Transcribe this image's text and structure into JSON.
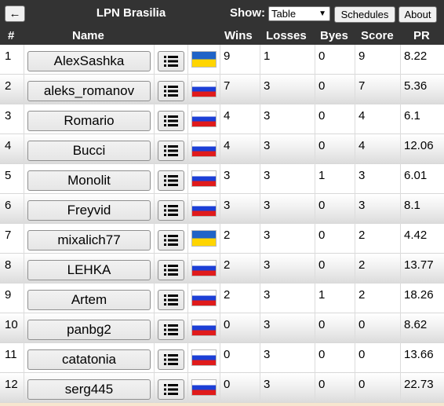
{
  "header": {
    "back_label": "←",
    "title": "LPN Brasilia",
    "show_label": "Show:",
    "show_value": "Table",
    "schedules_label": "Schedules",
    "about_label": "About"
  },
  "columns": {
    "num": "#",
    "name": "Name",
    "wins": "Wins",
    "losses": "Losses",
    "byes": "Byes",
    "score": "Score",
    "pr": "PR"
  },
  "rows": [
    {
      "num": "1",
      "name": "AlexSashka",
      "flag": "ua",
      "wins": "9",
      "losses": "1",
      "byes": "0",
      "score": "9",
      "pr": "8.22"
    },
    {
      "num": "2",
      "name": "aleks_romanov",
      "flag": "ru",
      "wins": "7",
      "losses": "3",
      "byes": "0",
      "score": "7",
      "pr": "5.36"
    },
    {
      "num": "3",
      "name": "Romario",
      "flag": "ru",
      "wins": "4",
      "losses": "3",
      "byes": "0",
      "score": "4",
      "pr": "6.1"
    },
    {
      "num": "4",
      "name": "Bucci",
      "flag": "ru",
      "wins": "4",
      "losses": "3",
      "byes": "0",
      "score": "4",
      "pr": "12.06"
    },
    {
      "num": "5",
      "name": "Monolit",
      "flag": "ru",
      "wins": "3",
      "losses": "3",
      "byes": "1",
      "score": "3",
      "pr": "6.01"
    },
    {
      "num": "6",
      "name": "Freyvid",
      "flag": "ru",
      "wins": "3",
      "losses": "3",
      "byes": "0",
      "score": "3",
      "pr": "8.1"
    },
    {
      "num": "7",
      "name": "mixalich77",
      "flag": "ua",
      "wins": "2",
      "losses": "3",
      "byes": "0",
      "score": "2",
      "pr": "4.42"
    },
    {
      "num": "8",
      "name": "LEHKA",
      "flag": "ru",
      "wins": "2",
      "losses": "3",
      "byes": "0",
      "score": "2",
      "pr": "13.77"
    },
    {
      "num": "9",
      "name": "Artem",
      "flag": "ru",
      "wins": "2",
      "losses": "3",
      "byes": "1",
      "score": "2",
      "pr": "18.26"
    },
    {
      "num": "10",
      "name": "panbg2",
      "flag": "ru",
      "wins": "0",
      "losses": "3",
      "byes": "0",
      "score": "0",
      "pr": "8.62"
    },
    {
      "num": "11",
      "name": "catatonia",
      "flag": "ru",
      "wins": "0",
      "losses": "3",
      "byes": "0",
      "score": "0",
      "pr": "13.66"
    },
    {
      "num": "12",
      "name": "serg445",
      "flag": "ru",
      "wins": "0",
      "losses": "3",
      "byes": "0",
      "score": "0",
      "pr": "22.73"
    }
  ],
  "colors": {
    "header_bg": "#333333",
    "ukraine_blue": "#1f63c7",
    "ukraine_yellow": "#ffd500",
    "russia_blue": "#1c3fd6",
    "russia_red": "#e01b1b"
  }
}
